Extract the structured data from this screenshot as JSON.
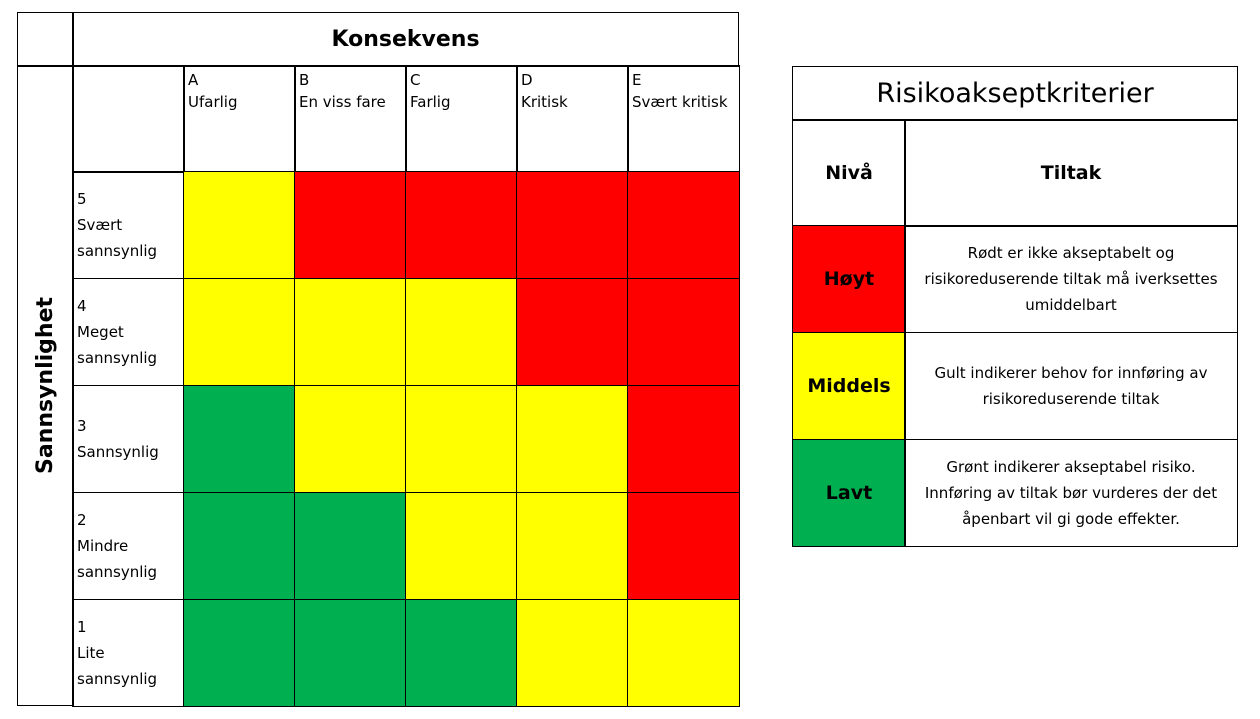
{
  "colors": {
    "red": "#ff0000",
    "yellow": "#ffff00",
    "green": "#00b050"
  },
  "matrix": {
    "consequence_title": "Konsekvens",
    "likelihood_title": "Sannsynlighet",
    "columns": [
      {
        "code": "A",
        "label": "Ufarlig"
      },
      {
        "code": "B",
        "label": "En viss fare"
      },
      {
        "code": "C",
        "label": "Farlig"
      },
      {
        "code": "D",
        "label": "Kritisk"
      },
      {
        "code": "E",
        "label": "Svært kritisk"
      }
    ],
    "rows": [
      {
        "level": "5",
        "label_lines": [
          "Svært",
          "sannsynlig"
        ],
        "cells": [
          "yellow",
          "red",
          "red",
          "red",
          "red"
        ]
      },
      {
        "level": "4",
        "label_lines": [
          "Meget",
          "sannsynlig"
        ],
        "cells": [
          "yellow",
          "yellow",
          "yellow",
          "red",
          "red"
        ]
      },
      {
        "level": "3",
        "label_lines": [
          "Sannsynlig"
        ],
        "cells": [
          "green",
          "yellow",
          "yellow",
          "yellow",
          "red"
        ]
      },
      {
        "level": "2",
        "label_lines": [
          "Mindre",
          "sannsynlig"
        ],
        "cells": [
          "green",
          "green",
          "yellow",
          "yellow",
          "red"
        ]
      },
      {
        "level": "1",
        "label_lines": [
          "Lite",
          "sannsynlig"
        ],
        "cells": [
          "green",
          "green",
          "green",
          "yellow",
          "yellow"
        ]
      }
    ]
  },
  "legend": {
    "title": "Risikoakseptkriterier",
    "col_level": "Nivå",
    "col_action": "Tiltak",
    "rows": [
      {
        "level": "Høyt",
        "color": "red",
        "text_lines": [
          "Rødt er ikke akseptabelt og",
          "risikoreduserende tiltak må iverksettes",
          "umiddelbart"
        ]
      },
      {
        "level": "Middels",
        "color": "yellow",
        "text_lines": [
          "Gult indikerer behov for innføring av",
          "risikoreduserende tiltak"
        ]
      },
      {
        "level": "Lavt",
        "color": "green",
        "text_lines": [
          "Grønt indikerer akseptabel risiko.",
          "Innføring av tiltak bør vurderes der det",
          "åpenbart vil gi gode effekter."
        ]
      }
    ]
  }
}
